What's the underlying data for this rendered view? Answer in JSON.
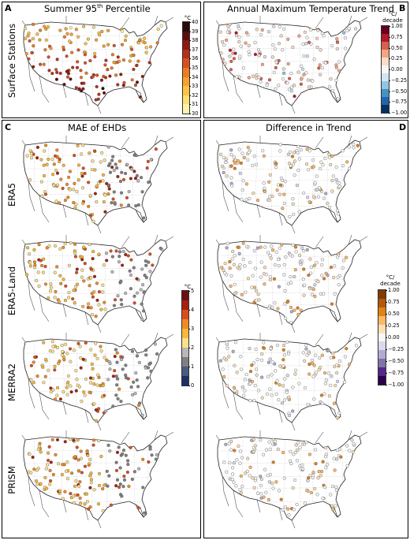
{
  "panels": {
    "A": {
      "letter": "A",
      "title_prefix": "Summer  95",
      "title_sup": "th",
      "title_suffix": " Percentile",
      "row_label": "Surface Stations",
      "colorbar": {
        "unit": "°C",
        "ticks": [
          "40",
          "39",
          "38",
          "37",
          "36",
          "35",
          "34",
          "33",
          "32",
          "31",
          "30"
        ],
        "colors": [
          "#2b0a0a",
          "#5a0f0f",
          "#8b1a10",
          "#b5301a",
          "#d9501f",
          "#ee7a22",
          "#f7a12e",
          "#fbc442",
          "#fde070",
          "#fff3a6"
        ]
      }
    },
    "B": {
      "letter": "B",
      "title": "Annual Maximum Temperature Trend",
      "colorbar": {
        "unit_line1": "°C/",
        "unit_line2": "decade",
        "ticks": [
          "1.00",
          "0.75",
          "0.50",
          "0.25",
          "0.00",
          "−0.25",
          "−0.50",
          "−0.75",
          "−1.00"
        ],
        "colors": [
          "#67001f",
          "#b2182b",
          "#d6604d",
          "#f4a582",
          "#fddbc7",
          "#f7f7f7",
          "#d1e5f0",
          "#92c5de",
          "#4393c3",
          "#2166ac",
          "#053061"
        ]
      }
    },
    "C": {
      "letter": "C",
      "title": "MAE of EHDs",
      "row_labels": [
        "ERA5",
        "ERA5-Land",
        "MERRA2",
        "PRISM"
      ],
      "colorbar": {
        "unit": "°C",
        "ticks": [
          "5",
          "4",
          "3",
          "2",
          "1",
          "0"
        ],
        "colors": [
          "#6b0f0f",
          "#a52010",
          "#d94e1a",
          "#f08a24",
          "#f7b93a",
          "#fde18a",
          "#b8b8b8",
          "#808080",
          "#4a5a80",
          "#1e3060"
        ]
      }
    },
    "D": {
      "letter": "D",
      "title": "Difference in Trend",
      "colorbar": {
        "unit_line1": "°C/",
        "unit_line2": "decade",
        "ticks": [
          "1.00",
          "0.75",
          "0.50",
          "0.25",
          "0.00",
          "−0.25",
          "−0.50",
          "−0.75",
          "−1.00"
        ],
        "colors": [
          "#7f3b08",
          "#b35806",
          "#e08214",
          "#fdb863",
          "#fee0b6",
          "#f7f7f7",
          "#d8daeb",
          "#b2abd2",
          "#8073ac",
          "#542788",
          "#2d004b"
        ]
      }
    }
  }
}
